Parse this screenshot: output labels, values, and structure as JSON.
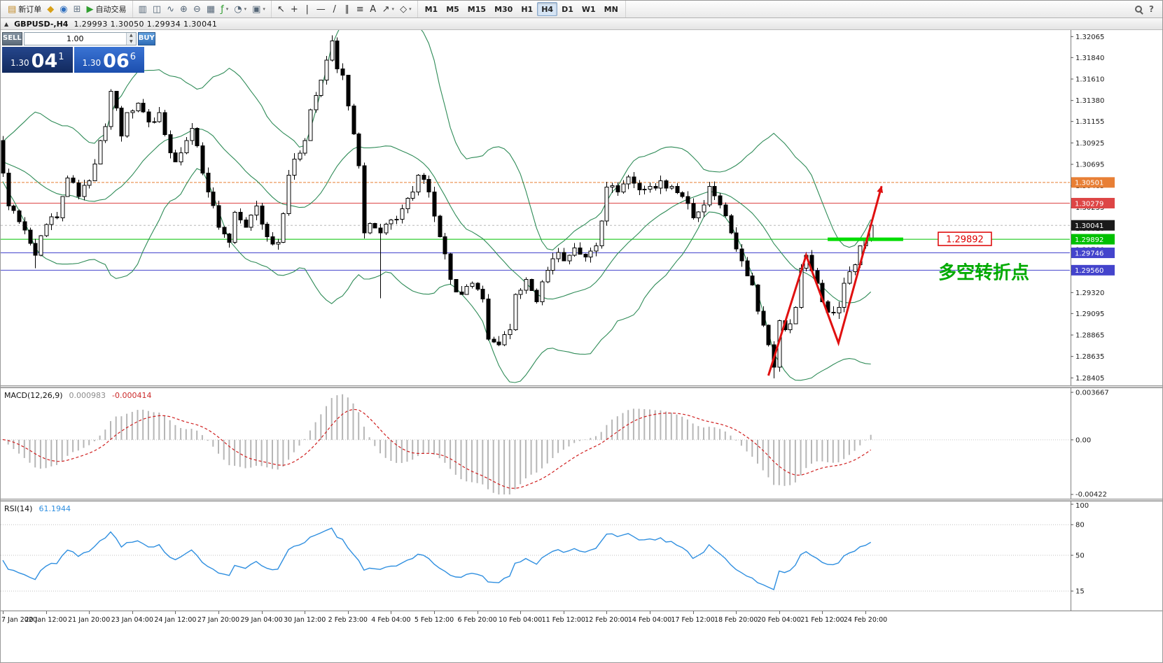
{
  "toolbar": {
    "groups": [
      {
        "name": "file-group",
        "buttons": [
          {
            "name": "new-order-button",
            "icon": "new-order-icon",
            "label": "新订单"
          },
          {
            "name": "profiles-button",
            "icon": "profiles-icon"
          },
          {
            "name": "market-watch-button",
            "icon": "market-watch-icon"
          },
          {
            "name": "navigator-button",
            "icon": "navigator-icon"
          },
          {
            "name": "autotrading-button",
            "icon": "autotrading-icon",
            "label": "自动交易"
          }
        ]
      },
      {
        "name": "chart-controls-group",
        "buttons": [
          {
            "name": "bar-chart-button",
            "icon": "bar-chart-icon"
          },
          {
            "name": "candlestick-chart-button",
            "icon": "candlestick-chart-icon"
          },
          {
            "name": "line-chart-button",
            "icon": "line-chart-icon"
          },
          {
            "name": "zoom-in-button",
            "icon": "zoom-in-icon"
          },
          {
            "name": "zoom-out-button",
            "icon": "zoom-out-icon"
          },
          {
            "name": "tile-windows-button",
            "icon": "tile-windows-icon"
          },
          {
            "name": "indicators-button",
            "icon": "indicators-icon",
            "dropdown": true
          },
          {
            "name": "periods-button",
            "icon": "periods-icon",
            "dropdown": true
          },
          {
            "name": "templates-button",
            "icon": "templates-icon",
            "dropdown": true
          }
        ]
      },
      {
        "name": "drawing-tools-group",
        "buttons": [
          {
            "name": "cursor-button",
            "icon": "cursor-icon"
          },
          {
            "name": "crosshair-button",
            "icon": "crosshair-icon"
          },
          {
            "name": "vertical-line-button",
            "icon": "vertical-line-icon"
          },
          {
            "name": "horizontal-line-button",
            "icon": "horizontal-line-icon"
          },
          {
            "name": "trendline-button",
            "icon": "trendline-icon"
          },
          {
            "name": "channel-button",
            "icon": "channel-icon"
          },
          {
            "name": "fibonacci-button",
            "icon": "fibonacci-icon"
          },
          {
            "name": "text-button",
            "icon": "text-icon"
          },
          {
            "name": "arrows-button",
            "icon": "arrows-icon",
            "dropdown": true
          },
          {
            "name": "shapes-button",
            "icon": "shapes-icon",
            "dropdown": true
          }
        ]
      },
      {
        "name": "timeframes-group",
        "buttons": [
          {
            "name": "tf-m1-button",
            "label": "M1"
          },
          {
            "name": "tf-m5-button",
            "label": "M5"
          },
          {
            "name": "tf-m15-button",
            "label": "M15"
          },
          {
            "name": "tf-m30-button",
            "label": "M30"
          },
          {
            "name": "tf-h1-button",
            "label": "H1"
          },
          {
            "name": "tf-h4-button",
            "label": "H4",
            "active": true
          },
          {
            "name": "tf-d1-button",
            "label": "D1"
          },
          {
            "name": "tf-w1-button",
            "label": "W1"
          },
          {
            "name": "tf-mn-button",
            "label": "MN"
          }
        ]
      }
    ],
    "help_label": "?"
  },
  "chart_header": {
    "collapse_icon": "▲",
    "title": "GBPUSD-,H4",
    "ohlc_text": "1.29993 1.30050 1.29934 1.30041"
  },
  "trade_widget": {
    "sell_label": "SELL",
    "buy_label": "BUY",
    "volume": "1.00",
    "spin_up_icon": "▲",
    "spin_down_icon": "▼",
    "sell_price": {
      "main": "1.30",
      "pips": "04",
      "frac": "1"
    },
    "buy_price": {
      "main": "1.30",
      "pips": "06",
      "frac": "6"
    }
  },
  "chart_data": {
    "type": "candlestick",
    "symbol": "GBPUSD-",
    "timeframe": "H4",
    "last_ohlc": {
      "open": 1.29993,
      "high": 1.3005,
      "low": 1.29934,
      "close": 1.30041
    },
    "y_axis_ticks": [
      1.32065,
      1.3184,
      1.3161,
      1.3138,
      1.31155,
      1.30925,
      1.30695,
      1.30465,
      1.30235,
      1.3001,
      1.2978,
      1.2955,
      1.2932,
      1.29095,
      1.28865,
      1.28635,
      1.28405
    ],
    "x_axis_labels": [
      {
        "bar": 0,
        "label": "7 Jan 2020"
      },
      {
        "bar": 8,
        "label": "20 Jan 12:00"
      },
      {
        "bar": 16,
        "label": "21 Jan 20:00"
      },
      {
        "bar": 24,
        "label": "23 Jan 04:00"
      },
      {
        "bar": 32,
        "label": "24 Jan 12:00"
      },
      {
        "bar": 40,
        "label": "27 Jan 20:00"
      },
      {
        "bar": 48,
        "label": "29 Jan 04:00"
      },
      {
        "bar": 56,
        "label": "30 Jan 12:00"
      },
      {
        "bar": 64,
        "label": "2 Feb 23:00"
      },
      {
        "bar": 72,
        "label": "4 Feb 04:00"
      },
      {
        "bar": 80,
        "label": "5 Feb 12:00"
      },
      {
        "bar": 88,
        "label": "6 Feb 20:00"
      },
      {
        "bar": 96,
        "label": "10 Feb 04:00"
      },
      {
        "bar": 104,
        "label": "11 Feb 12:00"
      },
      {
        "bar": 112,
        "label": "12 Feb 20:00"
      },
      {
        "bar": 120,
        "label": "14 Feb 04:00"
      },
      {
        "bar": 128,
        "label": "17 Feb 12:00"
      },
      {
        "bar": 136,
        "label": "18 Feb 20:00"
      },
      {
        "bar": 144,
        "label": "20 Feb 04:00"
      },
      {
        "bar": 152,
        "label": "21 Feb 12:00"
      },
      {
        "bar": 160,
        "label": "24 Feb 20:00"
      }
    ],
    "price_anchors": [
      [
        0,
        1.306
      ],
      [
        1,
        1.3025
      ],
      [
        3,
        1.3008
      ],
      [
        6,
        1.2972
      ],
      [
        8,
        1.3005
      ],
      [
        10,
        1.3012
      ],
      [
        12,
        1.3055
      ],
      [
        14,
        1.3035
      ],
      [
        16,
        1.3052
      ],
      [
        17,
        1.307
      ],
      [
        19,
        1.311
      ],
      [
        20,
        1.3148
      ],
      [
        21,
        1.313
      ],
      [
        22,
        1.31
      ],
      [
        23,
        1.3125
      ],
      [
        25,
        1.3135
      ],
      [
        27,
        1.3115
      ],
      [
        29,
        1.3125
      ],
      [
        31,
        1.3082
      ],
      [
        32,
        1.3072
      ],
      [
        34,
        1.3095
      ],
      [
        35,
        1.3108
      ],
      [
        37,
        1.306
      ],
      [
        38,
        1.304
      ],
      [
        40,
        1.3002
      ],
      [
        42,
        1.2986
      ],
      [
        43,
        1.3018
      ],
      [
        45,
        1.3002
      ],
      [
        47,
        1.3025
      ],
      [
        49,
        1.2992
      ],
      [
        51,
        1.2986
      ],
      [
        53,
        1.3058
      ],
      [
        54,
        1.3075
      ],
      [
        56,
        1.3095
      ],
      [
        57,
        1.3128
      ],
      [
        59,
        1.316
      ],
      [
        61,
        1.3202
      ],
      [
        62,
        1.3172
      ],
      [
        63,
        1.3165
      ],
      [
        64,
        1.3132
      ],
      [
        66,
        1.3068
      ],
      [
        67,
        1.2996
      ],
      [
        68,
        1.3006
      ],
      [
        70,
        1.2996
      ],
      [
        72,
        1.301
      ],
      [
        74,
        1.3022
      ],
      [
        76,
        1.304
      ],
      [
        77,
        1.3058
      ],
      [
        79,
        1.304
      ],
      [
        81,
        1.2992
      ],
      [
        83,
        1.2946
      ],
      [
        85,
        1.293
      ],
      [
        87,
        1.2942
      ],
      [
        89,
        1.2925
      ],
      [
        90,
        1.2882
      ],
      [
        92,
        1.2876
      ],
      [
        94,
        1.2892
      ],
      [
        95,
        1.293
      ],
      [
        97,
        1.2946
      ],
      [
        99,
        1.2922
      ],
      [
        101,
        1.2956
      ],
      [
        103,
        1.2975
      ],
      [
        104,
        1.2966
      ],
      [
        106,
        1.298
      ],
      [
        108,
        1.297
      ],
      [
        110,
        1.2982
      ],
      [
        112,
        1.3045
      ],
      [
        114,
        1.304
      ],
      [
        116,
        1.3056
      ],
      [
        118,
        1.3042
      ],
      [
        120,
        1.3046
      ],
      [
        122,
        1.3052
      ],
      [
        124,
        1.3046
      ],
      [
        126,
        1.3035
      ],
      [
        128,
        1.3012
      ],
      [
        130,
        1.3026
      ],
      [
        131,
        1.3046
      ],
      [
        133,
        1.3026
      ],
      [
        135,
        1.2996
      ],
      [
        137,
        1.2966
      ],
      [
        139,
        1.294
      ],
      [
        140,
        1.2912
      ],
      [
        142,
        1.2876
      ],
      [
        143,
        1.2852
      ],
      [
        144,
        1.2902
      ],
      [
        145,
        1.2892
      ],
      [
        147,
        1.2916
      ],
      [
        148,
        1.2958
      ],
      [
        149,
        1.2972
      ],
      [
        151,
        1.2942
      ],
      [
        152,
        1.2922
      ],
      [
        154,
        1.291
      ],
      [
        155,
        1.2916
      ],
      [
        156,
        1.2942
      ],
      [
        158,
        1.2962
      ],
      [
        159,
        1.2982
      ],
      [
        161,
        1.30041
      ]
    ],
    "wick_overrides": [
      {
        "bar": 6,
        "low": 1.2958
      },
      {
        "bar": 61,
        "high": 1.3208
      },
      {
        "bar": 70,
        "low": 1.2926
      },
      {
        "bar": 143,
        "low": 1.284
      }
    ],
    "levels": [
      {
        "price": 1.30501,
        "color": "#e87f35",
        "dash": "4,2"
      },
      {
        "price": 1.30279,
        "color": "#dd4545",
        "dash": ""
      },
      {
        "price": 1.29892,
        "color": "#00c000",
        "dash": ""
      },
      {
        "price": 1.29746,
        "color": "#4444cc",
        "dash": ""
      },
      {
        "price": 1.2956,
        "color": "#4444cc",
        "dash": ""
      }
    ],
    "current_price": {
      "price": 1.30041,
      "line_color": "#b8b8b8",
      "badge_color": "#1a1a1a"
    },
    "bollinger": {
      "period": 20,
      "deviation": 2,
      "color": "#2e8b57"
    },
    "drawings": {
      "trend_arrow": {
        "color": "#e01010",
        "points": [
          [
            142,
            1.2843
          ],
          [
            149,
            1.2972
          ],
          [
            155,
            1.2878
          ],
          [
            163,
            1.3046
          ]
        ]
      },
      "support_segment": {
        "price": 1.29892,
        "from_bar": 153,
        "to_bar": 167,
        "color": "#00dd00"
      },
      "price_tag": {
        "text": "1.29892",
        "bar": 173.5,
        "price": 1.29892,
        "color": "#dd0000"
      },
      "annotation": {
        "text": "多空转折点",
        "bar": 173.5,
        "price": 1.2947,
        "color": "#00aa00"
      }
    },
    "macd": {
      "label": "MACD(12,26,9)",
      "main_value": "0.000983",
      "signal_value": "-0.000414",
      "fast": 12,
      "slow": 26,
      "signal": 9,
      "histogram_color": "#b6b6b6",
      "signal_color": "#d02020",
      "range": [
        -0.00422,
        0.003667
      ],
      "axis_labels": [
        {
          "text": "0.003667",
          "value": 0.003667
        },
        {
          "text": "0.00",
          "value": 0
        },
        {
          "text": "-0.00422",
          "value": -0.00422
        }
      ]
    },
    "rsi": {
      "label": "RSI(14)",
      "value": "61.1944",
      "period": 14,
      "line_color": "#2f8fe0",
      "levels": [
        80,
        50,
        15
      ],
      "axis_labels": [
        {
          "text": "100",
          "value": 100
        },
        {
          "text": "80",
          "value": 80
        },
        {
          "text": "50",
          "value": 50
        },
        {
          "text": "15",
          "value": 15
        }
      ],
      "range": [
        0,
        100
      ]
    }
  }
}
